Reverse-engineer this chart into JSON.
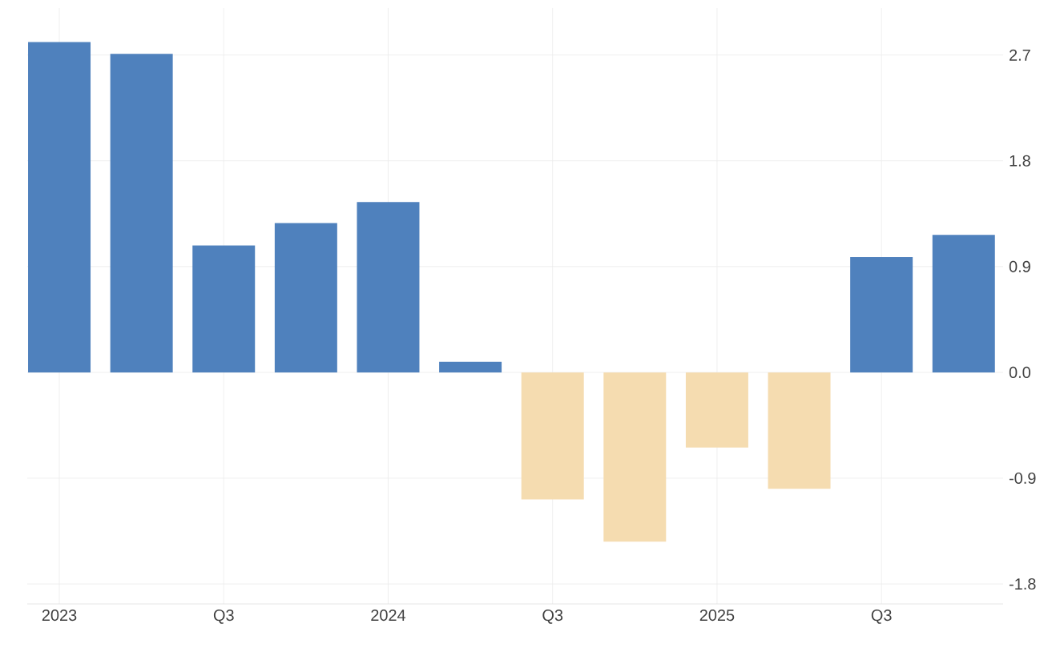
{
  "chart_data": {
    "type": "bar",
    "categories": [
      "2023",
      null,
      "Q3",
      null,
      "2024",
      null,
      "Q3",
      null,
      "2025",
      null,
      "Q3",
      null
    ],
    "values": [
      2.81,
      2.71,
      1.08,
      1.27,
      1.45,
      0.09,
      -1.08,
      -1.44,
      -0.64,
      -0.99,
      0.98,
      1.17
    ],
    "colors": [
      "#4f81bd",
      "#4f81bd",
      "#4f81bd",
      "#4f81bd",
      "#4f81bd",
      "#4f81bd",
      "#f5dcb0",
      "#f5dcb0",
      "#f5dcb0",
      "#f5dcb0",
      "#4f81bd",
      "#4f81bd"
    ],
    "ylim": [
      -1.97,
      3.1
    ],
    "yticks": [
      -1.8,
      -0.9,
      {
        "value": 0,
        "label": "0.0"
      },
      0.9,
      1.8,
      2.7
    ],
    "grid": true
  }
}
